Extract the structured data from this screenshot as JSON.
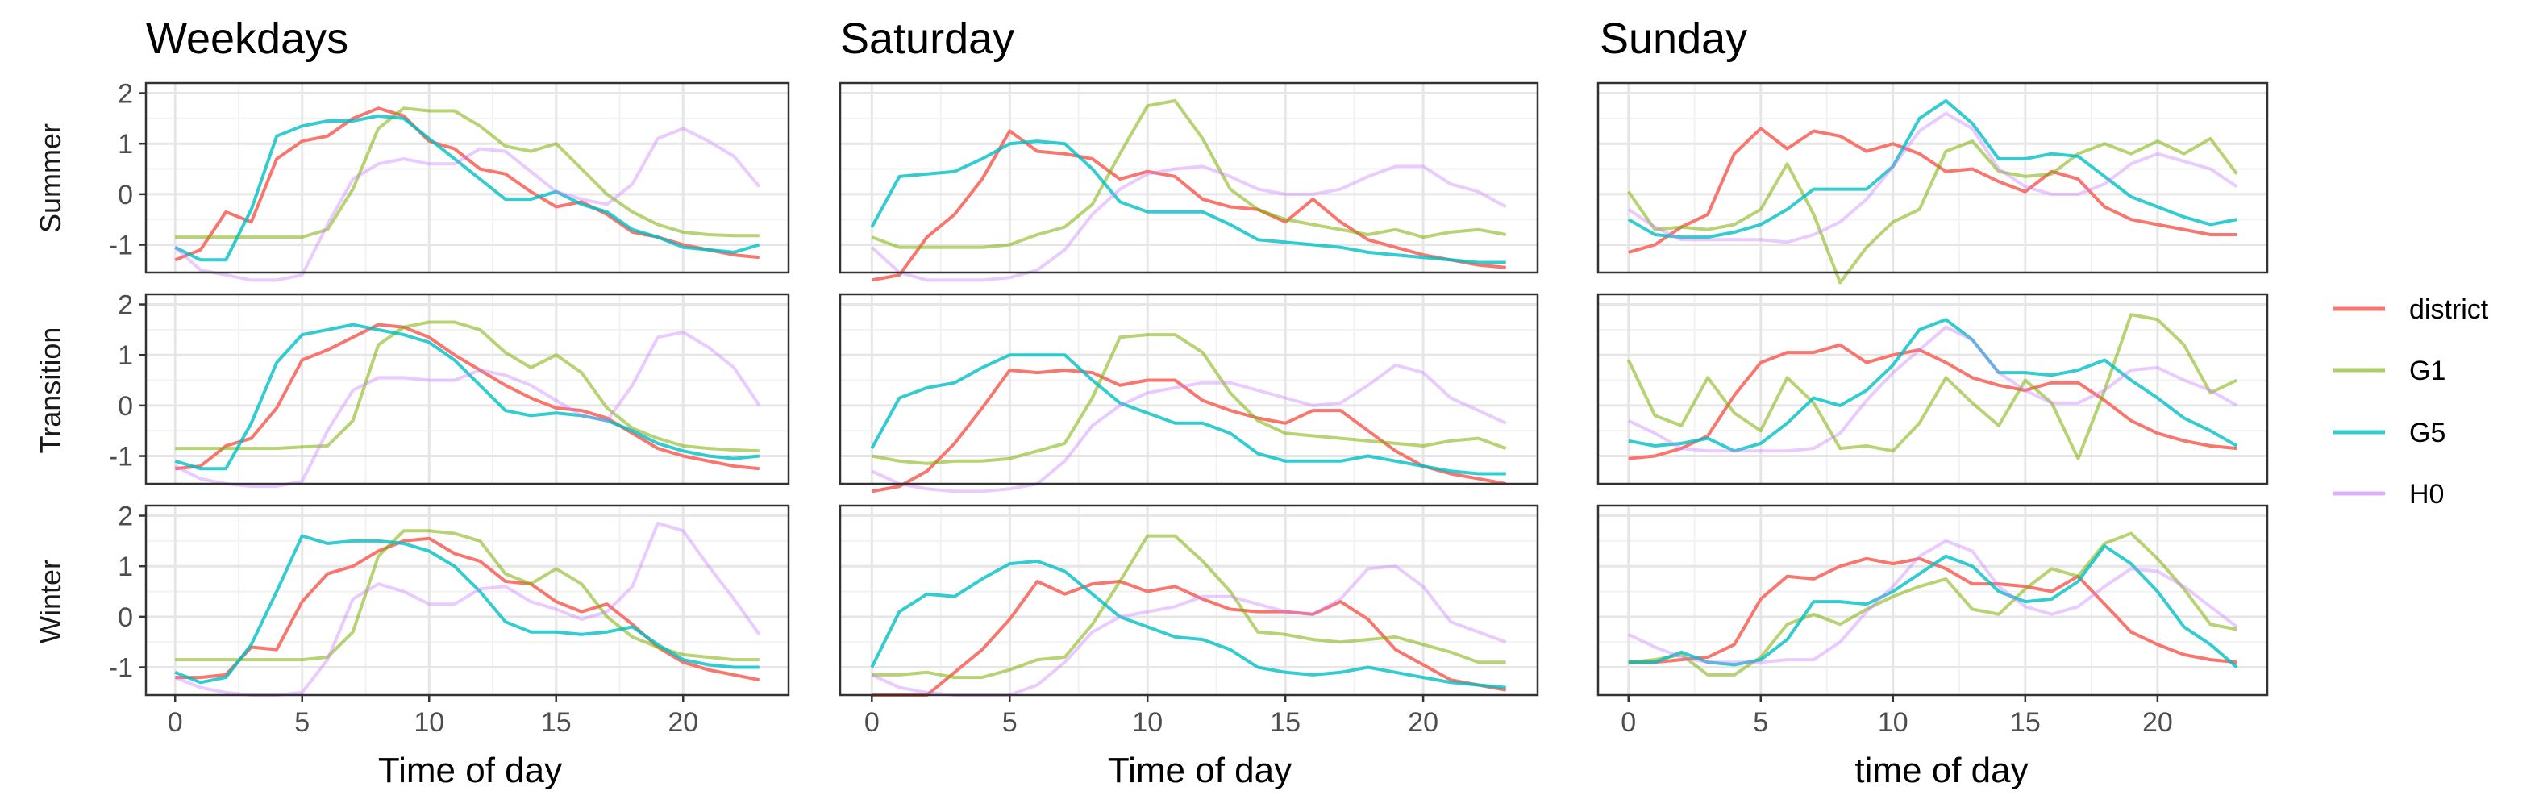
{
  "chart_data": {
    "type": "line",
    "columns": [
      "Weekdays",
      "Saturday",
      "Sunday"
    ],
    "rows": [
      "Summer",
      "Transition",
      "Winter"
    ],
    "xlabels": [
      "Time of day",
      "Time of day",
      "time of day"
    ],
    "x": [
      0,
      1,
      2,
      3,
      4,
      5,
      6,
      7,
      8,
      9,
      10,
      11,
      12,
      13,
      14,
      15,
      16,
      17,
      18,
      19,
      20,
      21,
      22,
      23
    ],
    "xticks": [
      0,
      5,
      10,
      15,
      20
    ],
    "yticks": [
      -1,
      0,
      1,
      2
    ],
    "ylim": [
      -1.55,
      2.2
    ],
    "xlim": [
      -1.15,
      24.15
    ],
    "grid": true,
    "legend_position": "right",
    "series_names": [
      "district",
      "G1",
      "G5",
      "H0"
    ],
    "colors": {
      "district": "#F8766D",
      "G1": "#7CAE00",
      "G5": "#00BFC4",
      "H0": "#C77CFF"
    },
    "series_alpha": {
      "district": 1.0,
      "G1": 0.55,
      "G5": 0.8,
      "H0": 0.4
    },
    "panels": [
      [
        {
          "district": [
            -1.3,
            -1.1,
            -0.35,
            -0.55,
            0.7,
            1.05,
            1.15,
            1.5,
            1.7,
            1.55,
            1.05,
            0.9,
            0.5,
            0.4,
            0.05,
            -0.25,
            -0.15,
            -0.4,
            -0.75,
            -0.85,
            -1.0,
            -1.1,
            -1.2,
            -1.25
          ],
          "G1": [
            -0.85,
            -0.85,
            -0.85,
            -0.85,
            -0.85,
            -0.85,
            -0.7,
            0.1,
            1.3,
            1.7,
            1.65,
            1.65,
            1.35,
            0.95,
            0.85,
            1.0,
            0.5,
            0.0,
            -0.35,
            -0.6,
            -0.75,
            -0.8,
            -0.82,
            -0.82
          ],
          "G5": [
            -1.05,
            -1.3,
            -1.3,
            -0.3,
            1.15,
            1.35,
            1.45,
            1.45,
            1.55,
            1.5,
            1.1,
            0.7,
            0.3,
            -0.1,
            -0.1,
            0.05,
            -0.2,
            -0.35,
            -0.7,
            -0.85,
            -1.05,
            -1.1,
            -1.15,
            -1.0
          ],
          "H0": [
            -1.05,
            -1.5,
            -1.6,
            -1.7,
            -1.7,
            -1.6,
            -0.6,
            0.3,
            0.6,
            0.7,
            0.6,
            0.6,
            0.9,
            0.85,
            0.45,
            0.05,
            -0.1,
            -0.2,
            0.2,
            1.1,
            1.3,
            1.05,
            0.75,
            0.15
          ]
        },
        {
          "district": [
            -1.7,
            -1.6,
            -0.85,
            -0.4,
            0.3,
            1.25,
            0.85,
            0.8,
            0.7,
            0.3,
            0.45,
            0.35,
            -0.1,
            -0.25,
            -0.3,
            -0.55,
            -0.1,
            -0.55,
            -0.9,
            -1.05,
            -1.2,
            -1.3,
            -1.4,
            -1.45
          ],
          "G1": [
            -0.85,
            -1.05,
            -1.05,
            -1.05,
            -1.05,
            -1.0,
            -0.8,
            -0.65,
            -0.2,
            0.8,
            1.75,
            1.85,
            1.1,
            0.1,
            -0.3,
            -0.5,
            -0.6,
            -0.7,
            -0.8,
            -0.7,
            -0.85,
            -0.75,
            -0.7,
            -0.8
          ],
          "G5": [
            -0.65,
            0.35,
            0.4,
            0.45,
            0.7,
            1.0,
            1.05,
            1.0,
            0.5,
            -0.15,
            -0.35,
            -0.35,
            -0.35,
            -0.6,
            -0.9,
            -0.95,
            -1.0,
            -1.05,
            -1.15,
            -1.2,
            -1.25,
            -1.3,
            -1.35,
            -1.35
          ],
          "H0": [
            -1.05,
            -1.55,
            -1.7,
            -1.7,
            -1.7,
            -1.65,
            -1.5,
            -1.1,
            -0.4,
            0.1,
            0.4,
            0.5,
            0.55,
            0.35,
            0.1,
            0.0,
            0.0,
            0.1,
            0.35,
            0.55,
            0.55,
            0.2,
            0.05,
            -0.25
          ]
        },
        {
          "district": [
            -1.15,
            -1.0,
            -0.65,
            -0.4,
            0.8,
            1.3,
            0.9,
            1.25,
            1.15,
            0.85,
            1.0,
            0.8,
            0.45,
            0.5,
            0.25,
            0.05,
            0.45,
            0.3,
            -0.25,
            -0.5,
            -0.6,
            -0.7,
            -0.8,
            -0.8
          ],
          "G1": [
            0.05,
            -0.7,
            -0.65,
            -0.7,
            -0.6,
            -0.3,
            0.6,
            -0.4,
            -1.75,
            -1.05,
            -0.55,
            -0.3,
            0.85,
            1.05,
            0.45,
            0.35,
            0.4,
            0.8,
            1.0,
            0.8,
            1.05,
            0.8,
            1.1,
            0.4
          ],
          "G5": [
            -0.5,
            -0.8,
            -0.85,
            -0.85,
            -0.75,
            -0.6,
            -0.3,
            0.1,
            0.1,
            0.1,
            0.55,
            1.5,
            1.85,
            1.4,
            0.7,
            0.7,
            0.8,
            0.75,
            0.35,
            -0.05,
            -0.25,
            -0.45,
            -0.6,
            -0.5
          ],
          "H0": [
            -0.3,
            -0.65,
            -0.9,
            -0.9,
            -0.9,
            -0.9,
            -0.95,
            -0.8,
            -0.55,
            -0.1,
            0.55,
            1.25,
            1.6,
            1.3,
            0.5,
            0.15,
            0.0,
            0.0,
            0.2,
            0.6,
            0.8,
            0.65,
            0.5,
            0.15
          ]
        }
      ],
      [
        {
          "district": [
            -1.25,
            -1.2,
            -0.8,
            -0.65,
            -0.05,
            0.9,
            1.1,
            1.35,
            1.6,
            1.55,
            1.35,
            1.0,
            0.7,
            0.4,
            0.15,
            -0.05,
            -0.1,
            -0.25,
            -0.55,
            -0.85,
            -1.0,
            -1.1,
            -1.2,
            -1.25
          ],
          "G1": [
            -0.85,
            -0.85,
            -0.85,
            -0.85,
            -0.85,
            -0.82,
            -0.8,
            -0.3,
            1.2,
            1.55,
            1.65,
            1.65,
            1.5,
            1.05,
            0.75,
            1.0,
            0.65,
            -0.05,
            -0.45,
            -0.65,
            -0.8,
            -0.85,
            -0.88,
            -0.9
          ],
          "G5": [
            -1.1,
            -1.25,
            -1.25,
            -0.35,
            0.85,
            1.4,
            1.5,
            1.6,
            1.5,
            1.4,
            1.25,
            0.9,
            0.4,
            -0.1,
            -0.2,
            -0.15,
            -0.2,
            -0.3,
            -0.5,
            -0.75,
            -0.9,
            -1.0,
            -1.05,
            -1.0
          ],
          "H0": [
            -1.2,
            -1.45,
            -1.55,
            -1.6,
            -1.6,
            -1.5,
            -0.5,
            0.3,
            0.55,
            0.55,
            0.5,
            0.5,
            0.7,
            0.6,
            0.4,
            0.1,
            -0.2,
            -0.3,
            0.4,
            1.35,
            1.45,
            1.15,
            0.75,
            0.0
          ]
        },
        {
          "district": [
            -1.7,
            -1.6,
            -1.3,
            -0.75,
            -0.05,
            0.7,
            0.65,
            0.7,
            0.65,
            0.4,
            0.5,
            0.5,
            0.1,
            -0.1,
            -0.25,
            -0.35,
            -0.1,
            -0.1,
            -0.5,
            -0.9,
            -1.2,
            -1.35,
            -1.45,
            -1.55
          ],
          "G1": [
            -1.0,
            -1.1,
            -1.15,
            -1.1,
            -1.1,
            -1.05,
            -0.9,
            -0.75,
            0.15,
            1.35,
            1.4,
            1.4,
            1.05,
            0.25,
            -0.3,
            -0.55,
            -0.6,
            -0.65,
            -0.7,
            -0.75,
            -0.8,
            -0.7,
            -0.65,
            -0.85
          ],
          "G5": [
            -0.85,
            0.15,
            0.35,
            0.45,
            0.75,
            1.0,
            1.0,
            1.0,
            0.5,
            0.05,
            -0.15,
            -0.35,
            -0.35,
            -0.55,
            -0.95,
            -1.1,
            -1.1,
            -1.1,
            -1.0,
            -1.1,
            -1.2,
            -1.3,
            -1.35,
            -1.35
          ],
          "H0": [
            -1.3,
            -1.55,
            -1.65,
            -1.7,
            -1.7,
            -1.65,
            -1.55,
            -1.1,
            -0.4,
            0.0,
            0.25,
            0.35,
            0.45,
            0.45,
            0.3,
            0.15,
            0.0,
            0.05,
            0.4,
            0.8,
            0.65,
            0.15,
            -0.1,
            -0.35
          ]
        },
        {
          "district": [
            -1.05,
            -1.0,
            -0.85,
            -0.6,
            0.2,
            0.85,
            1.05,
            1.05,
            1.2,
            0.85,
            1.0,
            1.1,
            0.85,
            0.55,
            0.4,
            0.3,
            0.45,
            0.45,
            0.1,
            -0.3,
            -0.55,
            -0.7,
            -0.8,
            -0.85
          ],
          "G1": [
            0.9,
            -0.2,
            -0.4,
            0.55,
            -0.15,
            -0.5,
            0.55,
            0.05,
            -0.85,
            -0.8,
            -0.9,
            -0.35,
            0.55,
            0.05,
            -0.4,
            0.5,
            0.05,
            -1.05,
            0.3,
            1.8,
            1.7,
            1.2,
            0.25,
            0.5
          ],
          "G5": [
            -0.7,
            -0.8,
            -0.75,
            -0.65,
            -0.9,
            -0.75,
            -0.35,
            0.15,
            0.0,
            0.3,
            0.8,
            1.5,
            1.7,
            1.3,
            0.65,
            0.65,
            0.6,
            0.7,
            0.9,
            0.5,
            0.15,
            -0.25,
            -0.5,
            -0.8
          ],
          "H0": [
            -0.3,
            -0.55,
            -0.85,
            -0.9,
            -0.9,
            -0.9,
            -0.9,
            -0.85,
            -0.55,
            0.1,
            0.65,
            1.1,
            1.55,
            1.3,
            0.65,
            0.3,
            0.05,
            0.05,
            0.3,
            0.7,
            0.75,
            0.5,
            0.3,
            0.0
          ]
        }
      ],
      [
        {
          "district": [
            -1.2,
            -1.2,
            -1.15,
            -0.6,
            -0.65,
            0.3,
            0.85,
            1.0,
            1.3,
            1.5,
            1.55,
            1.25,
            1.1,
            0.7,
            0.65,
            0.3,
            0.1,
            0.25,
            -0.15,
            -0.6,
            -0.9,
            -1.05,
            -1.15,
            -1.25
          ],
          "G1": [
            -0.85,
            -0.85,
            -0.85,
            -0.85,
            -0.85,
            -0.85,
            -0.8,
            -0.3,
            1.2,
            1.7,
            1.7,
            1.65,
            1.5,
            0.85,
            0.65,
            0.95,
            0.65,
            0.0,
            -0.4,
            -0.6,
            -0.75,
            -0.8,
            -0.85,
            -0.85
          ],
          "G5": [
            -1.1,
            -1.3,
            -1.2,
            -0.55,
            0.5,
            1.6,
            1.45,
            1.5,
            1.5,
            1.45,
            1.3,
            1.0,
            0.5,
            -0.1,
            -0.3,
            -0.3,
            -0.35,
            -0.3,
            -0.2,
            -0.55,
            -0.85,
            -0.95,
            -1.0,
            -1.0
          ],
          "H0": [
            -1.2,
            -1.4,
            -1.5,
            -1.55,
            -1.55,
            -1.5,
            -0.85,
            0.35,
            0.65,
            0.5,
            0.25,
            0.25,
            0.55,
            0.6,
            0.3,
            0.15,
            -0.05,
            0.1,
            0.6,
            1.85,
            1.7,
            1.0,
            0.35,
            -0.35
          ]
        },
        {
          "district": [
            -1.55,
            -1.55,
            -1.55,
            -1.1,
            -0.65,
            -0.05,
            0.7,
            0.45,
            0.65,
            0.7,
            0.5,
            0.6,
            0.35,
            0.15,
            0.1,
            0.1,
            0.05,
            0.3,
            -0.05,
            -0.65,
            -0.95,
            -1.25,
            -1.35,
            -1.45
          ],
          "G1": [
            -1.15,
            -1.15,
            -1.1,
            -1.2,
            -1.2,
            -1.05,
            -0.85,
            -0.8,
            -0.15,
            0.7,
            1.6,
            1.6,
            1.1,
            0.5,
            -0.3,
            -0.35,
            -0.45,
            -0.5,
            -0.45,
            -0.4,
            -0.55,
            -0.7,
            -0.9,
            -0.9
          ],
          "G5": [
            -1.0,
            0.1,
            0.45,
            0.4,
            0.75,
            1.05,
            1.1,
            0.9,
            0.45,
            0.0,
            -0.2,
            -0.4,
            -0.45,
            -0.65,
            -1.0,
            -1.1,
            -1.15,
            -1.1,
            -1.0,
            -1.1,
            -1.2,
            -1.3,
            -1.35,
            -1.4
          ],
          "H0": [
            -1.15,
            -1.4,
            -1.5,
            -1.55,
            -1.55,
            -1.55,
            -1.35,
            -0.9,
            -0.3,
            0.0,
            0.1,
            0.2,
            0.4,
            0.4,
            0.25,
            0.1,
            0.05,
            0.35,
            0.95,
            1.0,
            0.6,
            -0.1,
            -0.3,
            -0.5
          ]
        },
        {
          "district": [
            -0.9,
            -0.9,
            -0.85,
            -0.8,
            -0.55,
            0.35,
            0.8,
            0.75,
            1.0,
            1.15,
            1.05,
            1.15,
            0.95,
            0.65,
            0.65,
            0.6,
            0.5,
            0.8,
            0.25,
            -0.3,
            -0.55,
            -0.75,
            -0.85,
            -0.9
          ],
          "G1": [
            -0.9,
            -0.85,
            -0.75,
            -1.15,
            -1.15,
            -0.8,
            -0.15,
            0.05,
            -0.15,
            0.15,
            0.4,
            0.6,
            0.75,
            0.15,
            0.05,
            0.55,
            0.95,
            0.8,
            1.45,
            1.65,
            1.15,
            0.55,
            -0.15,
            -0.25
          ],
          "G5": [
            -0.9,
            -0.9,
            -0.7,
            -0.9,
            -0.95,
            -0.85,
            -0.45,
            0.3,
            0.3,
            0.25,
            0.5,
            0.85,
            1.2,
            1.0,
            0.5,
            0.3,
            0.35,
            0.7,
            1.4,
            1.05,
            0.5,
            -0.2,
            -0.55,
            -1.0
          ],
          "H0": [
            -0.35,
            -0.6,
            -0.8,
            -0.9,
            -0.9,
            -0.9,
            -0.85,
            -0.85,
            -0.5,
            0.1,
            0.6,
            1.2,
            1.5,
            1.3,
            0.6,
            0.2,
            0.05,
            0.2,
            0.6,
            0.95,
            0.9,
            0.6,
            0.2,
            -0.2
          ]
        }
      ]
    ]
  }
}
